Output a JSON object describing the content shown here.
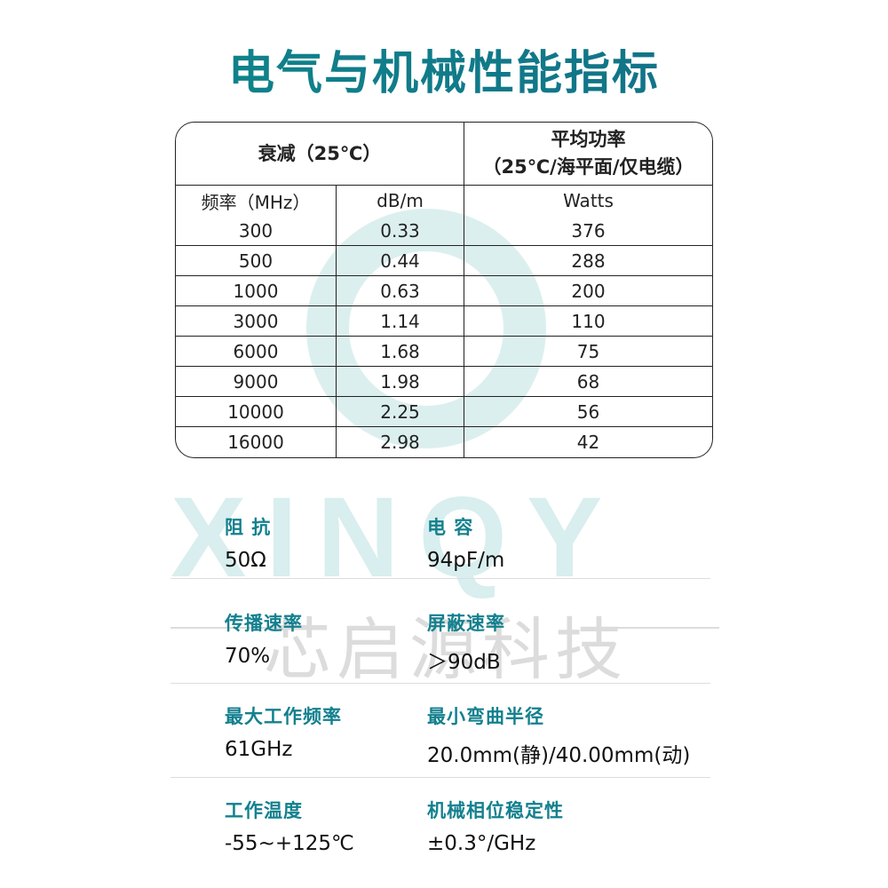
{
  "title": "电气与机械性能指标",
  "watermark": {
    "logo_text": "XINQY",
    "company": "芯启源科技"
  },
  "table": {
    "header_attenuation": "衰减（25℃）",
    "header_power_line1": "平均功率",
    "header_power_line2": "（25℃/海平面/仅电缆）",
    "col_freq": "频率（MHz）",
    "col_db": "dB/m",
    "col_watts": "Watts",
    "rows": [
      [
        "300",
        "0.33",
        "376"
      ],
      [
        "500",
        "0.44",
        "288"
      ],
      [
        "1000",
        "0.63",
        "200"
      ],
      [
        "3000",
        "1.14",
        "110"
      ],
      [
        "6000",
        "1.68",
        "75"
      ],
      [
        "9000",
        "1.98",
        "68"
      ],
      [
        "10000",
        "2.25",
        "56"
      ],
      [
        "16000",
        "2.98",
        "42"
      ]
    ]
  },
  "specs": [
    {
      "label": "阻 抗",
      "value": "50Ω"
    },
    {
      "label": "电 容",
      "value": "94pF/m"
    },
    {
      "label": "传播速率",
      "value": "70%"
    },
    {
      "label": "屏蔽速率",
      "value": "＞90dB"
    },
    {
      "label": "最大工作频率",
      "value": "61GHz"
    },
    {
      "label": "最小弯曲半径",
      "value": "20.0mm(静)/40.00mm(动)"
    },
    {
      "label": "工作温度",
      "value": "-55~+125℃"
    },
    {
      "label": "机械相位稳定性",
      "value": "±0.3°/GHz"
    }
  ],
  "colors": {
    "title": "#0f7c88",
    "label": "#13808e"
  }
}
